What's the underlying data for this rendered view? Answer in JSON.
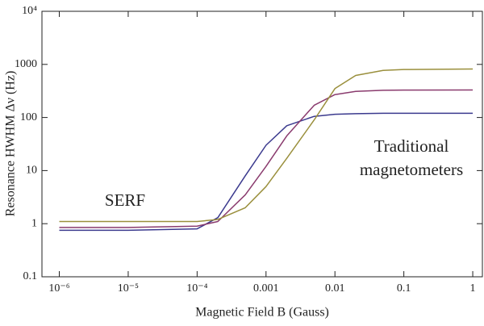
{
  "chart_data": {
    "type": "line",
    "xlabel": "Magnetic Field B (Gauss)",
    "ylabel": "Resonance HWHM Δν (Hz)",
    "log_x": true,
    "log_y": true,
    "xlim": [
      5.6e-07,
      1.38
    ],
    "ylim": [
      0.1,
      10000
    ],
    "xticks": [
      {
        "value": 1e-06,
        "label": "10⁻⁶"
      },
      {
        "value": 1e-05,
        "label": "10⁻⁵"
      },
      {
        "value": 0.0001,
        "label": "10⁻⁴"
      },
      0.001,
      0.01,
      0.1,
      1
    ],
    "yticks": [
      0.1,
      1,
      10,
      100,
      1000,
      {
        "value": 10000,
        "label": "10⁴"
      }
    ],
    "x": [
      1e-06,
      1e-05,
      0.0001,
      0.0002,
      0.0005,
      0.001,
      0.002,
      0.005,
      0.01,
      0.02,
      0.05,
      0.1,
      1
    ],
    "series": [
      {
        "color": "#3b3a8e",
        "values": [
          0.75,
          0.75,
          0.8,
          1.3,
          8,
          30,
          70,
          105,
          115,
          118,
          120,
          120,
          120
        ]
      },
      {
        "color": "#8a3b6e",
        "values": [
          0.85,
          0.85,
          0.9,
          1.1,
          3.5,
          12,
          45,
          170,
          270,
          310,
          325,
          328,
          330
        ]
      },
      {
        "color": "#9a8f3c",
        "values": [
          1.1,
          1.1,
          1.1,
          1.2,
          2,
          5,
          17,
          90,
          350,
          620,
          770,
          800,
          820
        ]
      }
    ],
    "annotations": [
      {
        "lines": [
          "SERF"
        ]
      },
      {
        "lines": [
          "Traditional",
          "magnetometers"
        ]
      }
    ]
  }
}
